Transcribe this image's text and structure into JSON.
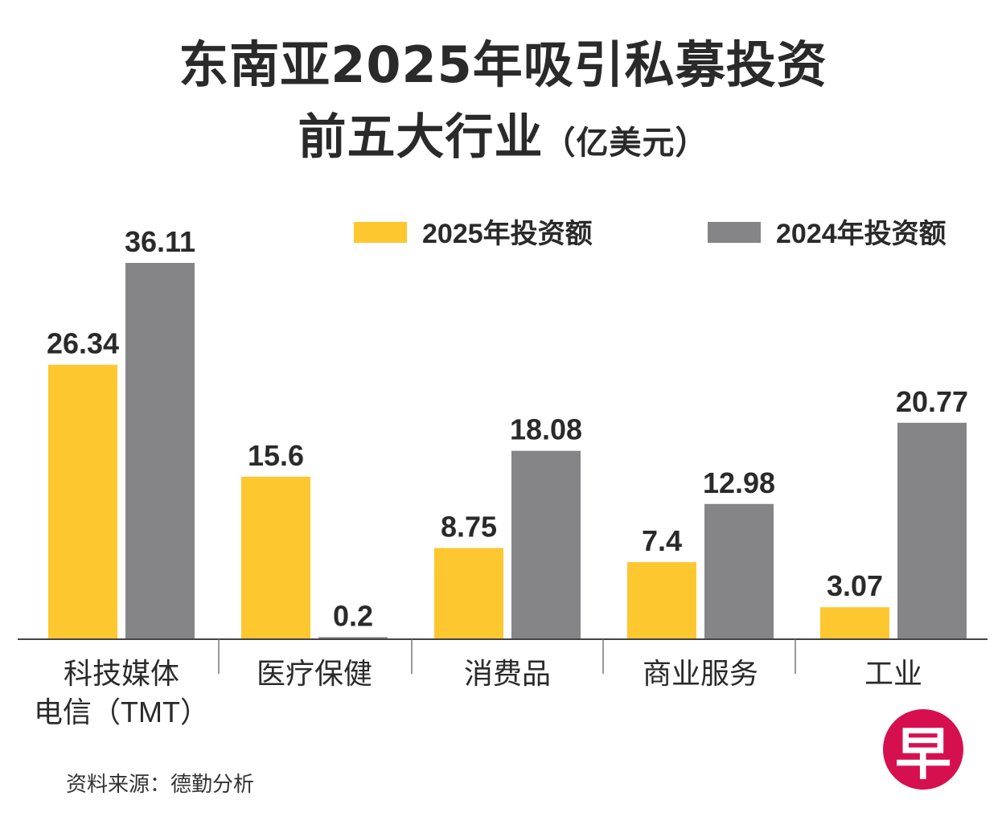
{
  "title": {
    "line1": "东南亚2025年吸引私募投资",
    "line2": "前五大行业",
    "unit": "（亿美元）"
  },
  "source": "资料来源：德勤分析",
  "logo": {
    "text": "早"
  },
  "colors": {
    "series_2025": "#fdc72f",
    "series_2024": "#858588",
    "axis": "#444444",
    "text": "#2a2a2a"
  },
  "chart_data": {
    "type": "bar",
    "categories": [
      [
        "科技媒体",
        "电信（TMT）"
      ],
      [
        "医疗保健"
      ],
      [
        "消费品"
      ],
      [
        "商业服务"
      ],
      [
        "工业"
      ]
    ],
    "series": [
      {
        "name": "2025年投资额",
        "values": [
          26.34,
          15.6,
          8.75,
          7.4,
          3.07
        ],
        "labels": [
          "26.34",
          "15.6",
          "8.75",
          "7.4",
          "3.07"
        ]
      },
      {
        "name": "2024年投资额",
        "values": [
          36.11,
          0.2,
          18.08,
          12.98,
          20.77
        ],
        "labels": [
          "36.11",
          "0.2",
          "18.08",
          "12.98",
          "20.77"
        ]
      }
    ],
    "ylim": [
      0,
      37
    ],
    "legend": "top-right",
    "grid": false
  }
}
